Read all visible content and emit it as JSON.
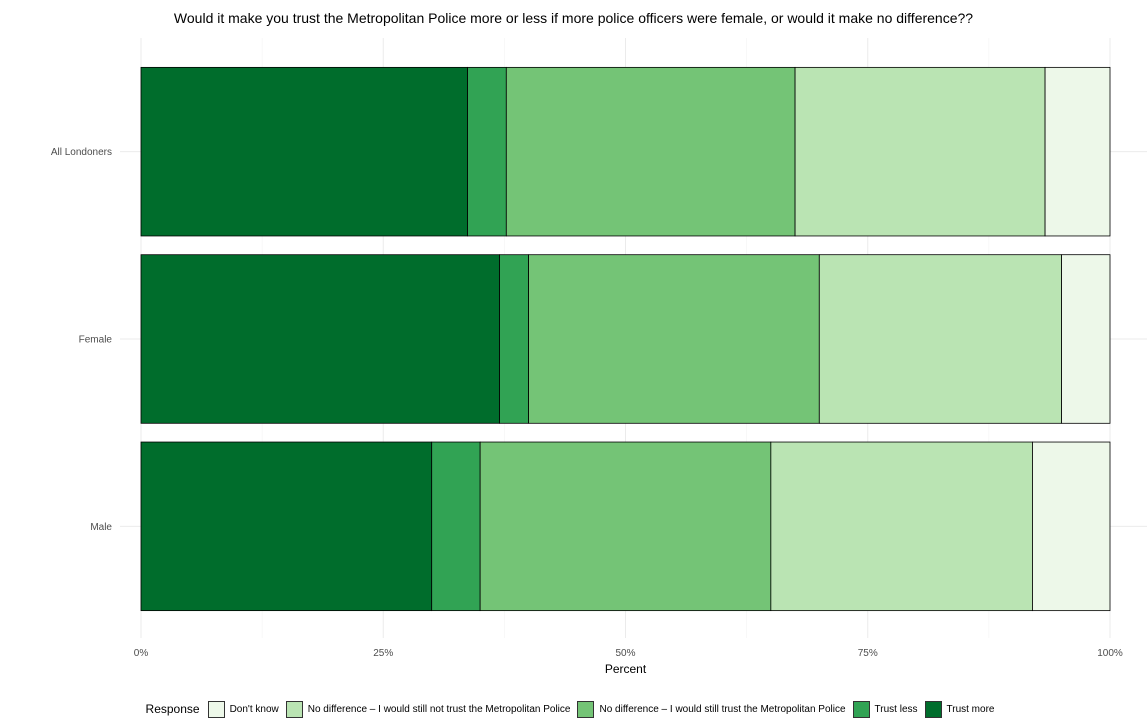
{
  "chart_data": {
    "type": "bar",
    "orientation": "horizontal",
    "stacked": true,
    "title": "Would it make you trust the Metropolitan Police more or less if more police officers were female, or would it make no difference??",
    "xlabel": "Percent",
    "ylabel": "",
    "xlim": [
      0,
      100
    ],
    "x_ticks": [
      "0%",
      "25%",
      "50%",
      "75%",
      "100%"
    ],
    "x_tick_values": [
      0,
      25,
      50,
      75,
      100
    ],
    "categories": [
      "All Londoners",
      "Female",
      "Male"
    ],
    "series": [
      {
        "name": "Trust more",
        "color": "#006d2c",
        "values": [
          33.7,
          37,
          30
        ]
      },
      {
        "name": "Trust less",
        "color": "#31a354",
        "values": [
          4,
          3,
          5
        ]
      },
      {
        "name": "No difference – I would still trust the Metropolitan Police",
        "color": "#74c476",
        "values": [
          29.8,
          30,
          30
        ]
      },
      {
        "name": "No difference – I would still not trust the Metropolitan Police",
        "color": "#bae4b3",
        "values": [
          25.8,
          25,
          27
        ]
      },
      {
        "name": "Don't know",
        "color": "#edf8e9",
        "values": [
          6.7,
          5,
          8
        ]
      }
    ],
    "legend_title": "Response",
    "legend_position": "bottom",
    "legend_order": [
      {
        "name": "Don't know",
        "color": "#edf8e9"
      },
      {
        "name": "No difference – I would still not trust the Metropolitan Police",
        "color": "#bae4b3"
      },
      {
        "name": "No difference – I would still trust the Metropolitan Police",
        "color": "#74c476"
      },
      {
        "name": "Trust less",
        "color": "#31a354"
      },
      {
        "name": "Trust more",
        "color": "#006d2c"
      }
    ],
    "grid": true
  }
}
